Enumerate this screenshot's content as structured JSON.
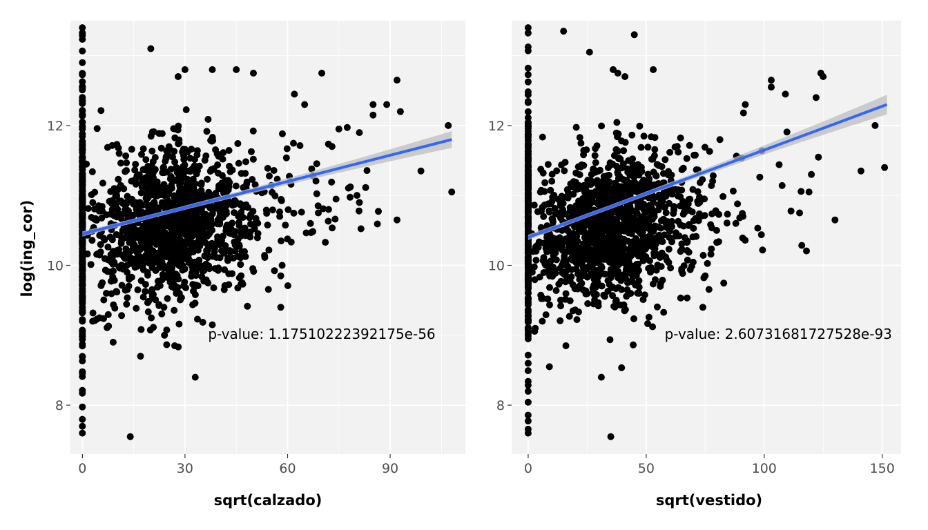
{
  "colors": {
    "panel_background": "#f2f2f2",
    "grid_major": "#ffffff",
    "points": "#000000",
    "regression_line": "#3366ff",
    "confidence_band": "#bdbdbd",
    "tick_text": "#4d4d4d"
  },
  "shared_ylabel": "log(ing_cor)",
  "chart_data": [
    {
      "type": "scatter",
      "xlabel": "sqrt(calzado)",
      "ylabel": "log(ing_cor)",
      "xlim": [
        -3.5,
        112
      ],
      "ylim": [
        7.3,
        13.5
      ],
      "xticks": [
        0,
        30,
        60,
        90
      ],
      "yticks": [
        8,
        10,
        12
      ],
      "grid": true,
      "annotation": {
        "text": "p-value: 1.17510222392175e-56",
        "x": 70,
        "y": 8.95
      },
      "regression": {
        "x": [
          0,
          108
        ],
        "y": [
          10.45,
          11.8
        ],
        "band_halfwidth_start": 0.03,
        "band_halfwidth_end": 0.12
      },
      "zero_column": {
        "x": 0,
        "y_min": 7.6,
        "y_max": 13.4
      },
      "cluster": {
        "x_center": 25,
        "y_center": 10.55,
        "x_spread": 11,
        "y_spread": 0.55
      },
      "notable_points": [
        {
          "x": 0,
          "y": 13.4
        },
        {
          "x": 0,
          "y": 7.6
        },
        {
          "x": 14,
          "y": 7.55
        },
        {
          "x": 20,
          "y": 13.1
        },
        {
          "x": 33,
          "y": 8.4
        },
        {
          "x": 17,
          "y": 8.7
        },
        {
          "x": 9,
          "y": 8.9
        },
        {
          "x": 58,
          "y": 9.4
        },
        {
          "x": 38,
          "y": 9.15
        },
        {
          "x": 58,
          "y": 9.85
        },
        {
          "x": 92,
          "y": 12.65
        },
        {
          "x": 93,
          "y": 12.2
        },
        {
          "x": 85,
          "y": 12.3
        },
        {
          "x": 89,
          "y": 12.3
        },
        {
          "x": 85,
          "y": 12.15
        },
        {
          "x": 107,
          "y": 12.0
        },
        {
          "x": 108,
          "y": 11.05
        },
        {
          "x": 99,
          "y": 11.35
        },
        {
          "x": 92,
          "y": 10.65
        },
        {
          "x": 81,
          "y": 11.9
        },
        {
          "x": 81,
          "y": 10.9
        },
        {
          "x": 70,
          "y": 12.75
        },
        {
          "x": 50,
          "y": 12.75
        },
        {
          "x": 45,
          "y": 12.8
        },
        {
          "x": 38,
          "y": 12.8
        },
        {
          "x": 30,
          "y": 12.8
        },
        {
          "x": 28,
          "y": 12.7
        },
        {
          "x": 62,
          "y": 12.45
        },
        {
          "x": 65,
          "y": 12.3
        },
        {
          "x": 75,
          "y": 11.95
        },
        {
          "x": 73,
          "y": 11.7
        },
        {
          "x": 69,
          "y": 10.75
        },
        {
          "x": 72,
          "y": 10.8
        },
        {
          "x": 3,
          "y": 9.2
        },
        {
          "x": 5,
          "y": 9.25
        },
        {
          "x": 7,
          "y": 9.6
        },
        {
          "x": 27,
          "y": 8.85
        },
        {
          "x": 24,
          "y": 9.0
        }
      ]
    },
    {
      "type": "scatter",
      "xlabel": "sqrt(vestido)",
      "ylabel": "",
      "xlim": [
        -7,
        158
      ],
      "ylim": [
        7.3,
        13.5
      ],
      "xticks": [
        0,
        50,
        100,
        150
      ],
      "yticks": [
        8,
        10,
        12
      ],
      "grid": true,
      "annotation": {
        "text": "p-value: 2.60731681727528e-93",
        "x": 106,
        "y": 8.95
      },
      "regression": {
        "x": [
          0,
          152
        ],
        "y": [
          10.4,
          12.3
        ],
        "band_halfwidth_start": 0.03,
        "band_halfwidth_end": 0.14
      },
      "zero_column": {
        "x": 0,
        "y_min": 7.6,
        "y_max": 13.4
      },
      "cluster": {
        "x_center": 33,
        "y_center": 10.55,
        "x_spread": 16,
        "y_spread": 0.55
      },
      "notable_points": [
        {
          "x": 0,
          "y": 13.4
        },
        {
          "x": 0,
          "y": 7.6
        },
        {
          "x": 35,
          "y": 7.55
        },
        {
          "x": 45,
          "y": 13.3
        },
        {
          "x": 15,
          "y": 13.35
        },
        {
          "x": 26,
          "y": 13.05
        },
        {
          "x": 31,
          "y": 8.4
        },
        {
          "x": 9,
          "y": 8.55
        },
        {
          "x": 16,
          "y": 8.85
        },
        {
          "x": 74,
          "y": 9.4
        },
        {
          "x": 75,
          "y": 9.85
        },
        {
          "x": 130,
          "y": 10.65
        },
        {
          "x": 151,
          "y": 11.4
        },
        {
          "x": 141,
          "y": 11.35
        },
        {
          "x": 147,
          "y": 12.0
        },
        {
          "x": 124,
          "y": 12.75
        },
        {
          "x": 125,
          "y": 12.7
        },
        {
          "x": 122,
          "y": 12.4
        },
        {
          "x": 109,
          "y": 12.45
        },
        {
          "x": 103,
          "y": 12.65
        },
        {
          "x": 120,
          "y": 11.3
        },
        {
          "x": 115,
          "y": 10.75
        },
        {
          "x": 119,
          "y": 11.05
        },
        {
          "x": 88,
          "y": 10.6
        },
        {
          "x": 91,
          "y": 10.7
        },
        {
          "x": 92,
          "y": 12.3
        },
        {
          "x": 103,
          "y": 12.55
        },
        {
          "x": 53,
          "y": 12.8
        },
        {
          "x": 36,
          "y": 12.8
        },
        {
          "x": 38,
          "y": 12.75
        },
        {
          "x": 41,
          "y": 12.7
        },
        {
          "x": 3,
          "y": 9.1
        },
        {
          "x": 6,
          "y": 9.2
        },
        {
          "x": 19,
          "y": 9.35
        },
        {
          "x": 56,
          "y": 9.7
        },
        {
          "x": 47,
          "y": 9.6
        }
      ]
    }
  ]
}
